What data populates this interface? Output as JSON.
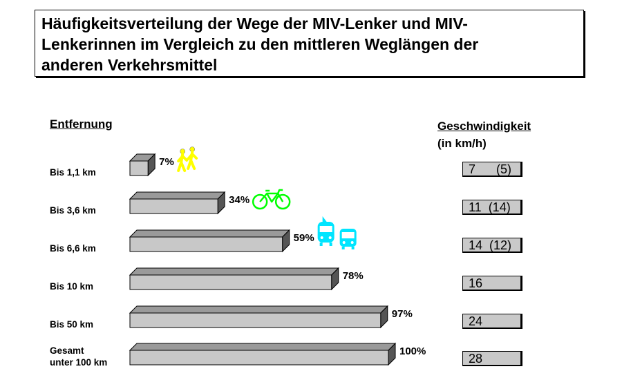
{
  "title": "Häufigkeitsverteilung der Wege der MIV-Lenker und MIV-Lenkerinnen im Vergleich zu den mittleren Weglängen der anderen Verkehrsmittel",
  "title_lines": [
    "Häufigkeitsverteilung der Wege der MIV-Lenker und MIV-",
    "Lenkerinnen im Vergleich zu den mittleren Weglängen der",
    "anderen Verkehrsmittel"
  ],
  "left_header": "Entfernung",
  "right_header": {
    "line1": "Geschwindigkeit",
    "line2": "(in km/h)"
  },
  "colors": {
    "bar_front": "#c8c8c8",
    "bar_top": "#9a9a9a",
    "bar_side": "#555555",
    "pedestrian": "#ffff00",
    "bicycle": "#00ff00",
    "transit": "#00e5ff"
  },
  "chart_data": {
    "type": "bar",
    "orientation": "horizontal",
    "title": "Häufigkeitsverteilung der Wege der MIV-Lenker und MIV-Lenkerinnen im Vergleich zu den mittleren Weglängen der anderen Verkehrsmittel",
    "xlabel": "",
    "ylabel": "Entfernung",
    "xlim": [
      0,
      100
    ],
    "categories": [
      "Bis 1,1 km",
      "Bis 3,6 km",
      "Bis 6,6 km",
      "Bis 10 km",
      "Bis 50 km",
      "Gesamt unter 100 km"
    ],
    "category_lines": [
      [
        "Bis 1,1 km"
      ],
      [
        "Bis 3,6 km"
      ],
      [
        "Bis 6,6 km"
      ],
      [
        "Bis 10 km"
      ],
      [
        "Bis 50 km"
      ],
      [
        "Gesamt",
        "unter 100 km"
      ]
    ],
    "values": [
      7,
      34,
      59,
      78,
      97,
      100
    ],
    "value_labels": [
      "7%",
      "34%",
      "59%",
      "78%",
      "97%",
      "100%"
    ],
    "speed_header": "Geschwindigkeit (in km/h)",
    "speeds": [
      "7      (5)",
      "11  (14)",
      "14  (12)",
      "16",
      "24",
      "28"
    ],
    "icons": [
      [
        "pedestrian-icon"
      ],
      [
        "bicycle-icon"
      ],
      [
        "tram-icon",
        "bus-icon"
      ],
      [],
      [],
      []
    ]
  }
}
